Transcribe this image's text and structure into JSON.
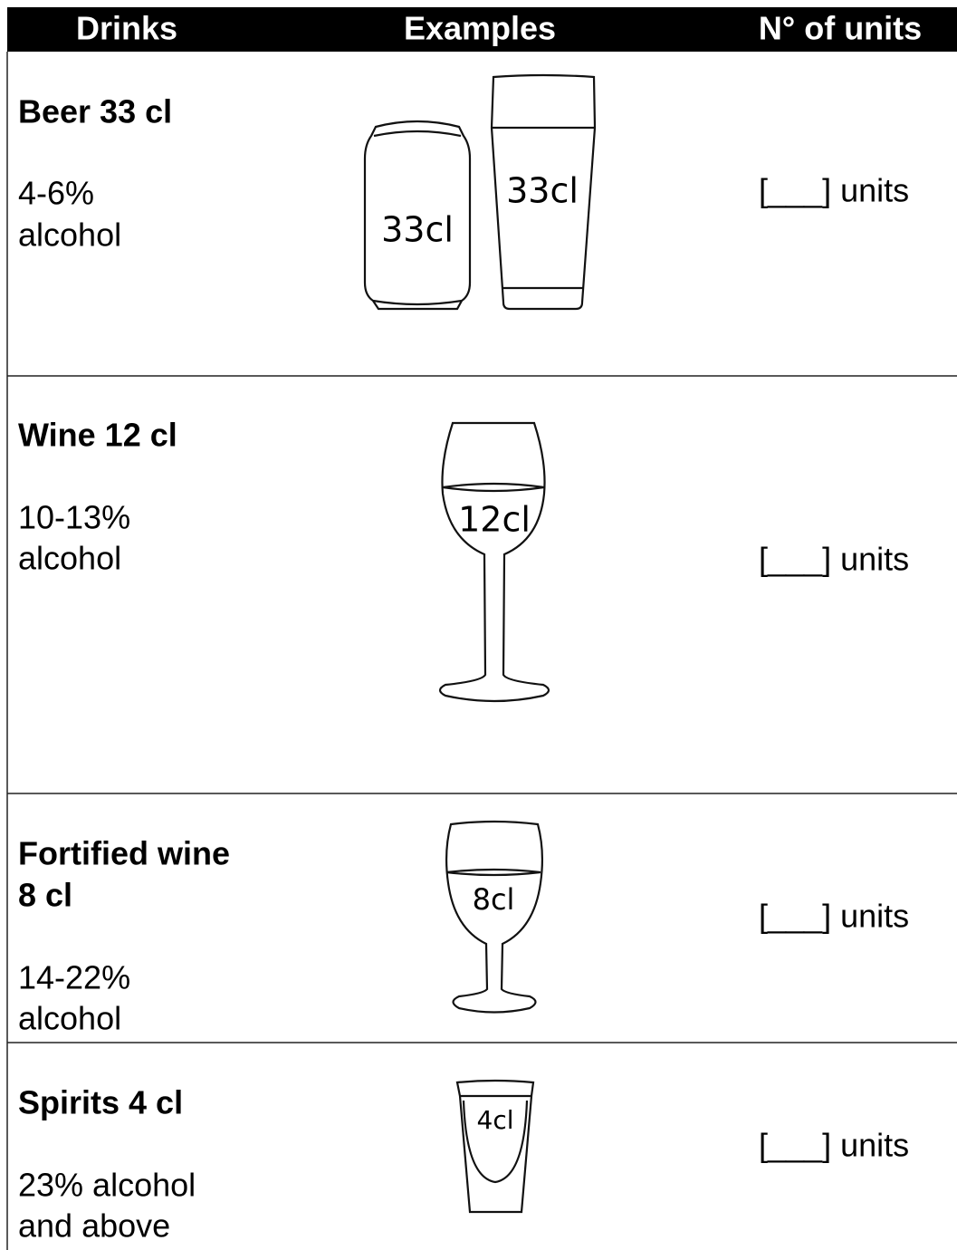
{
  "table": {
    "header": [
      "Drinks",
      "Examples",
      "N° of units"
    ],
    "rows": [
      {
        "name": [
          "Beer 33 cl"
        ],
        "alcohol": [
          "4-6%",
          "alcohol"
        ],
        "example_labels": [
          "33cl",
          "33cl"
        ],
        "units": "[___] units"
      },
      {
        "name": [
          "Wine 12 cl"
        ],
        "alcohol": [
          "10-13%",
          "alcohol"
        ],
        "example_labels": [
          "12cl"
        ],
        "units": "[___] units"
      },
      {
        "name": [
          "Fortified wine",
          "8 cl"
        ],
        "alcohol": [
          "14-22%",
          "alcohol"
        ],
        "example_labels": [
          "8cl"
        ],
        "units": "[___] units"
      },
      {
        "name": [
          "Spirits 4 cl"
        ],
        "alcohol": [
          "23% alcohol",
          "and above"
        ],
        "example_labels": [
          "4cl"
        ],
        "units": "[___] units"
      }
    ]
  }
}
